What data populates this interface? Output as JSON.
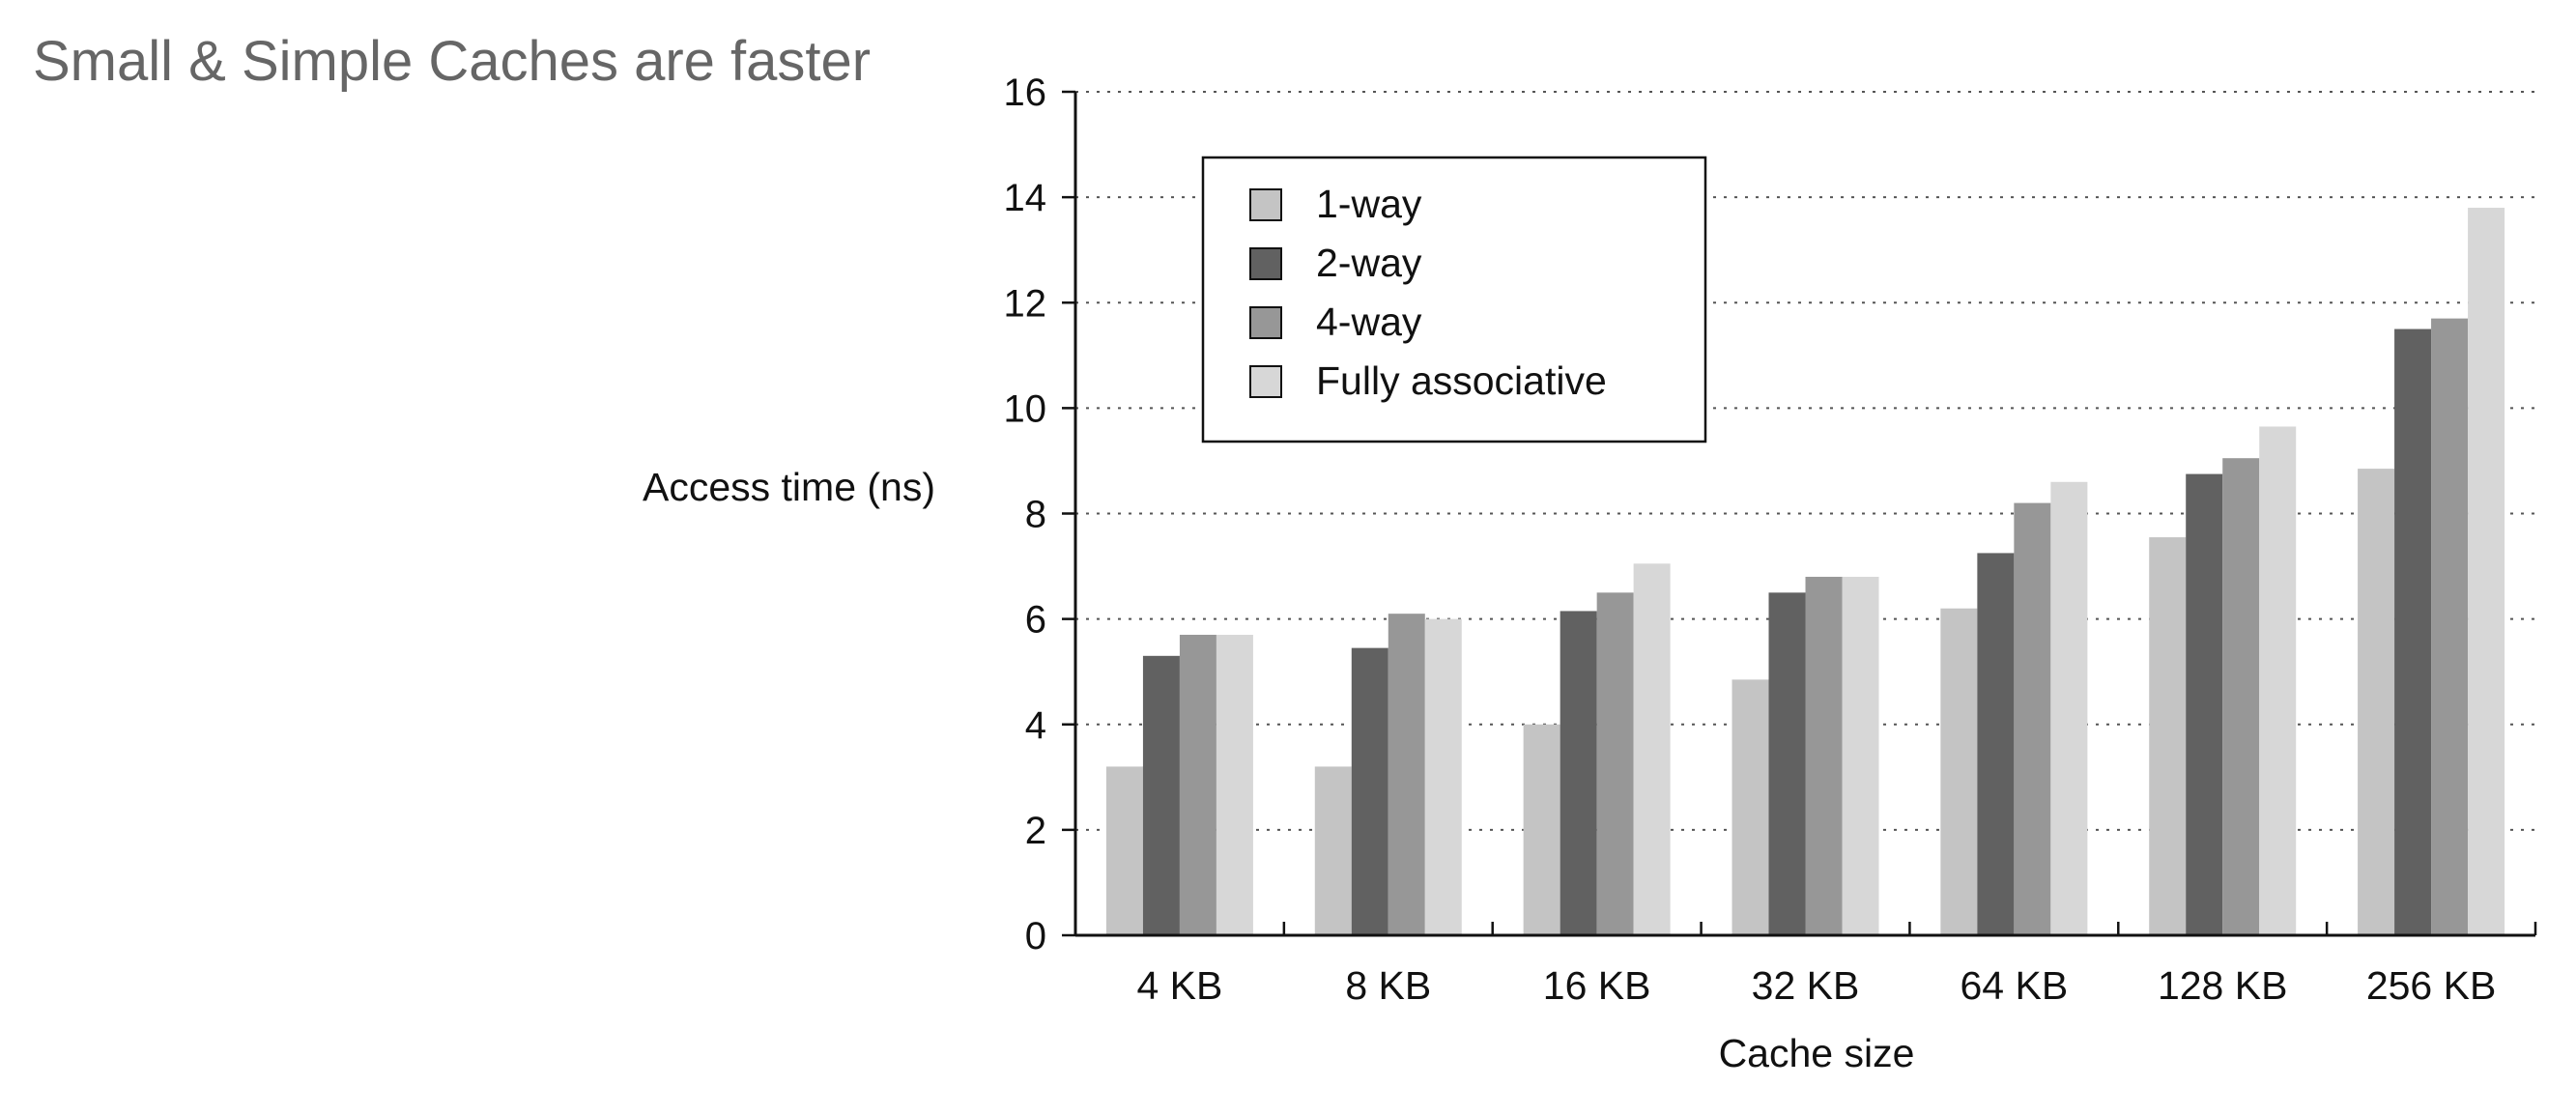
{
  "slide": {
    "title": "Small & Simple Caches are faster"
  },
  "chart_data": {
    "type": "bar",
    "title": "",
    "xlabel": "Cache size",
    "ylabel": "Access time (ns)",
    "categories": [
      "4 KB",
      "8 KB",
      "16 KB",
      "32 KB",
      "64 KB",
      "128 KB",
      "256 KB"
    ],
    "ylim": [
      0,
      16
    ],
    "yticks": [
      0,
      2,
      4,
      6,
      8,
      10,
      12,
      14,
      16
    ],
    "grid": "horizontal dotted",
    "legend_position": "top-left",
    "series": [
      {
        "name": "1-way",
        "color": "#c4c4c4",
        "values": [
          3.2,
          3.2,
          4.0,
          4.85,
          6.2,
          7.55,
          8.85
        ]
      },
      {
        "name": "2-way",
        "color": "#616161",
        "values": [
          5.3,
          5.45,
          6.15,
          6.5,
          7.25,
          8.75,
          11.5
        ]
      },
      {
        "name": "4-way",
        "color": "#979797",
        "values": [
          5.7,
          6.1,
          6.5,
          6.8,
          8.2,
          9.05,
          11.7
        ]
      },
      {
        "name": "Fully associative",
        "color": "#d7d7d7",
        "values": [
          5.7,
          6.0,
          7.05,
          6.8,
          8.6,
          9.65,
          13.8
        ]
      }
    ]
  }
}
